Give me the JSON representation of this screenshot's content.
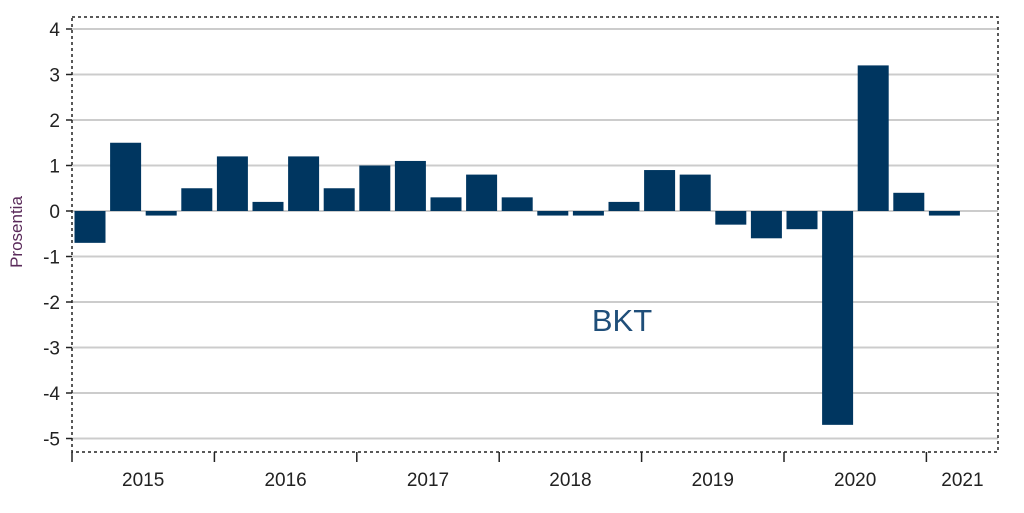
{
  "chart_data": {
    "type": "bar",
    "title": "",
    "annotation": "BKT",
    "xlabel": "",
    "ylabel": "Prosentia",
    "ylim": [
      -5.3,
      4.3
    ],
    "yticks": [
      4,
      3,
      2,
      1,
      0,
      -1,
      -2,
      -3,
      -4,
      -5
    ],
    "grid": true,
    "legend": "none",
    "year_labels": [
      "2015",
      "2016",
      "2017",
      "2018",
      "2019",
      "2020",
      "2021"
    ],
    "categories": [
      "2015Q1",
      "2015Q2",
      "2015Q3",
      "2015Q4",
      "2016Q1",
      "2016Q2",
      "2016Q3",
      "2016Q4",
      "2017Q1",
      "2017Q2",
      "2017Q3",
      "2017Q4",
      "2018Q1",
      "2018Q2",
      "2018Q3",
      "2018Q4",
      "2019Q1",
      "2019Q2",
      "2019Q3",
      "2019Q4",
      "2020Q1",
      "2020Q2",
      "2020Q3",
      "2020Q4",
      "2021Q1"
    ],
    "values": [
      -0.7,
      1.5,
      -0.1,
      0.5,
      1.2,
      0.2,
      1.2,
      0.5,
      1.0,
      1.1,
      0.3,
      0.8,
      0.3,
      -0.1,
      -0.1,
      0.2,
      0.9,
      0.8,
      -0.3,
      -0.6,
      -0.4,
      -4.7,
      3.2,
      0.4,
      -0.1
    ],
    "colors": {
      "bar": "#003660",
      "grid": "#cccccc",
      "annotation": "#1f4e79",
      "ylabel": "#5a2a5a"
    }
  }
}
